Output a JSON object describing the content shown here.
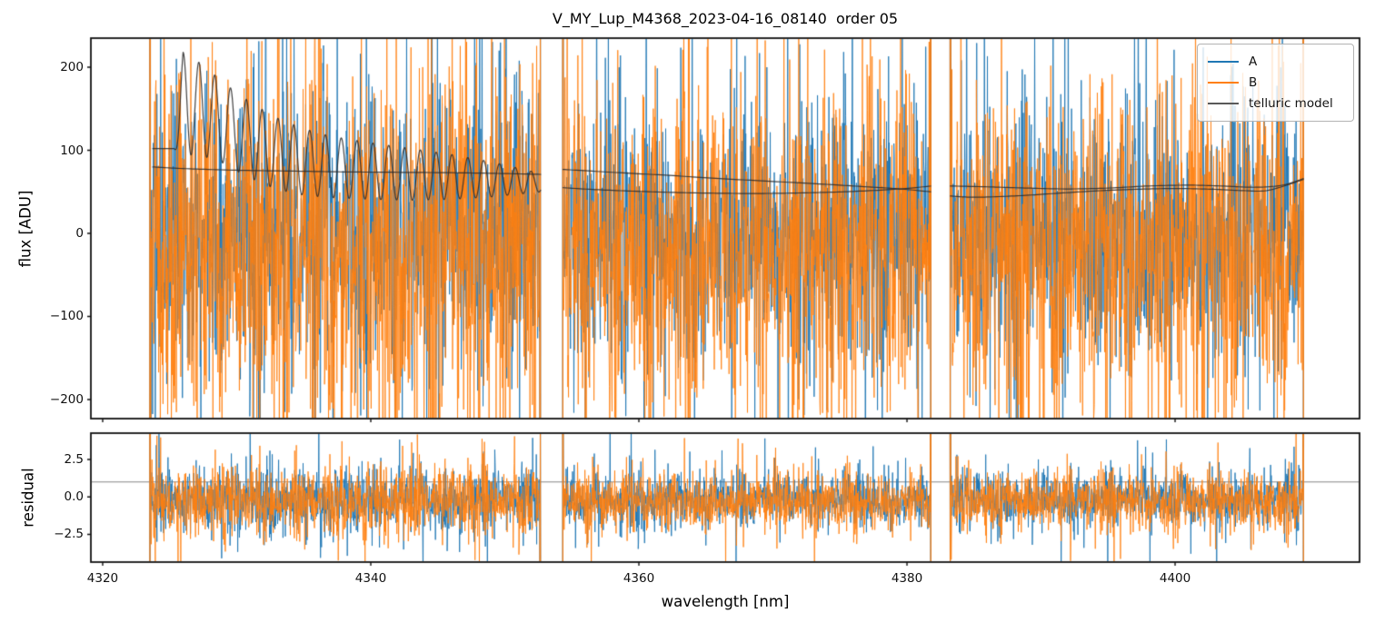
{
  "title": "V_MY_Lup_M4368_2023-04-16_08140  order 05",
  "axes": {
    "xlabel": "wavelength [nm]",
    "xlim": [
      4319.12,
      4413.76
    ],
    "xticks": [
      {
        "value": 4320,
        "label": "4320"
      },
      {
        "value": 4340,
        "label": "4340"
      },
      {
        "value": 4360,
        "label": "4360"
      },
      {
        "value": 4380,
        "label": "4380"
      },
      {
        "value": 4400,
        "label": "4400"
      }
    ],
    "flux_panel": {
      "ylabel": "flux [ADU]",
      "ylim": [
        -223,
        235
      ],
      "yticks": [
        {
          "value": 200,
          "label": "200"
        },
        {
          "value": 100,
          "label": "100"
        },
        {
          "value": 0,
          "label": "0"
        },
        {
          "value": -100,
          "label": "−100"
        },
        {
          "value": -200,
          "label": "−200"
        }
      ]
    },
    "residual_panel": {
      "ylabel": "residual",
      "ylim": [
        -4.35,
        4.26
      ],
      "yticks": [
        {
          "value": 2.5,
          "label": "2.5"
        },
        {
          "value": 0.0,
          "label": "0.0"
        },
        {
          "value": -2.5,
          "label": "−2.5"
        }
      ],
      "reference_line": 1.0
    }
  },
  "legend": {
    "items": [
      {
        "label": "A",
        "color": "#1f77b4"
      },
      {
        "label": "B",
        "color": "#ff7f0e"
      },
      {
        "label": "telluric model",
        "color": "#595959"
      }
    ]
  },
  "chart_data": {
    "type": "line",
    "title": "V_MY_Lup_M4368_2023-04-16_08140  order 05",
    "xlabel": "wavelength [nm]",
    "panels": [
      {
        "name": "flux",
        "ylabel": "flux [ADU]",
        "ylim": [
          -223,
          235
        ],
        "grid": false
      },
      {
        "name": "residual",
        "ylabel": "residual",
        "ylim": [
          -4.35,
          4.26
        ],
        "reference_line": 1.0,
        "grid": false
      }
    ],
    "xlim": [
      4319.12,
      4413.76
    ],
    "segments_nm": [
      [
        4323.5,
        4352.7
      ],
      [
        4354.3,
        4381.8
      ],
      [
        4383.2,
        4409.6
      ]
    ],
    "sampling_step_nm": 0.025,
    "legend_position": "upper right",
    "series": [
      {
        "name": "A",
        "color": "#1f77b4",
        "kind": "noisy-spectrum",
        "alpha": 0.9,
        "flux": {
          "mean": 0,
          "sigma": 78,
          "tail_p": 0.05,
          "tail_sigma": 150,
          "spike_p": 0.012,
          "spike_sigma": 430,
          "seed": 11
        },
        "residual": {
          "mean": -0.2,
          "sigma": 0.92,
          "tail_p": 0.04,
          "tail_sigma": 1.6,
          "spike_p": 0.008,
          "spike_sigma": 4.5,
          "seed": 21
        }
      },
      {
        "name": "B",
        "color": "#ff7f0e",
        "kind": "noisy-spectrum",
        "alpha": 0.85,
        "flux": {
          "mean": -22,
          "sigma": 98,
          "tail_p": 0.05,
          "tail_sigma": 160,
          "spike_p": 0.012,
          "spike_sigma": 430,
          "seed": 31
        },
        "residual": {
          "mean": -0.3,
          "sigma": 1.0,
          "tail_p": 0.04,
          "tail_sigma": 1.5,
          "spike_p": 0.008,
          "spike_sigma": 4.2,
          "seed": 41
        }
      }
    ],
    "flux_seg_scale": [
      1.15,
      1.0,
      1.0
    ],
    "residual_seg_scale": [
      1.2,
      1.0,
      1.0
    ],
    "telluric_model": {
      "name": "telluric model",
      "color": "#2e2e2e",
      "segment1": {
        "baseline_points": [
          [
            4323.7,
            80
          ],
          [
            4326,
            78
          ],
          [
            4330,
            76
          ],
          [
            4334,
            75
          ],
          [
            4338,
            74
          ],
          [
            4342,
            73.5
          ],
          [
            4346,
            73
          ],
          [
            4350,
            72
          ],
          [
            4352.7,
            71
          ]
        ],
        "oscillation": {
          "center_points": [
            [
              4323.7,
              102
            ],
            [
              4325.3,
              102
            ],
            [
              4326.0,
              157
            ],
            [
              4327.1,
              150
            ],
            [
              4328.4,
              140
            ],
            [
              4330.0,
              122
            ],
            [
              4331.5,
              108
            ],
            [
              4333.0,
              96
            ],
            [
              4335.0,
              86
            ],
            [
              4337.0,
              80
            ],
            [
              4340.0,
              75
            ],
            [
              4343.0,
              71
            ],
            [
              4346.0,
              68
            ],
            [
              4349.0,
              65
            ],
            [
              4352.7,
              61
            ]
          ],
          "envelope_points": [
            [
              4323.7,
              0
            ],
            [
              4325.3,
              0
            ],
            [
              4326.0,
              61
            ],
            [
              4327.1,
              57
            ],
            [
              4328.4,
              50
            ],
            [
              4330.0,
              47
            ],
            [
              4331.5,
              45
            ],
            [
              4333.0,
              43
            ],
            [
              4335.0,
              40
            ],
            [
              4337.0,
              37
            ],
            [
              4340.0,
              34
            ],
            [
              4343.0,
              31
            ],
            [
              4346.0,
              27
            ],
            [
              4349.0,
              21
            ],
            [
              4352.7,
              11
            ]
          ],
          "period_nm": 1.18,
          "peak_at_nm": 4326.0
        }
      },
      "segment2": {
        "upper_points": [
          [
            4354.3,
            77
          ],
          [
            4358,
            73.5
          ],
          [
            4362,
            70
          ],
          [
            4366,
            66
          ],
          [
            4370,
            62.5
          ],
          [
            4374,
            59
          ],
          [
            4377,
            56
          ],
          [
            4379.5,
            53.5
          ],
          [
            4381.8,
            50
          ]
        ],
        "lower_points": [
          [
            4354.3,
            55
          ],
          [
            4357,
            52.5
          ],
          [
            4361,
            50
          ],
          [
            4365,
            48.5
          ],
          [
            4369,
            48
          ],
          [
            4373,
            49
          ],
          [
            4376,
            50.5
          ],
          [
            4379.5,
            53.5
          ],
          [
            4381.8,
            57
          ]
        ]
      },
      "segment3": {
        "upper_points": [
          [
            4383.2,
            57
          ],
          [
            4386,
            56
          ],
          [
            4389,
            54.5
          ],
          [
            4392,
            53.5
          ],
          [
            4395,
            54.5
          ],
          [
            4398,
            57
          ],
          [
            4401,
            58
          ],
          [
            4403.5,
            57
          ],
          [
            4406,
            55.5
          ],
          [
            4408,
            58
          ],
          [
            4409.6,
            66
          ]
        ],
        "lower_points": [
          [
            4383.2,
            45
          ],
          [
            4385,
            43.5
          ],
          [
            4388,
            45
          ],
          [
            4391,
            48
          ],
          [
            4394,
            51
          ],
          [
            4397,
            53
          ],
          [
            4400,
            54
          ],
          [
            4403,
            53
          ],
          [
            4405,
            51.5
          ],
          [
            4407,
            52
          ],
          [
            4409.6,
            65
          ]
        ]
      }
    }
  }
}
